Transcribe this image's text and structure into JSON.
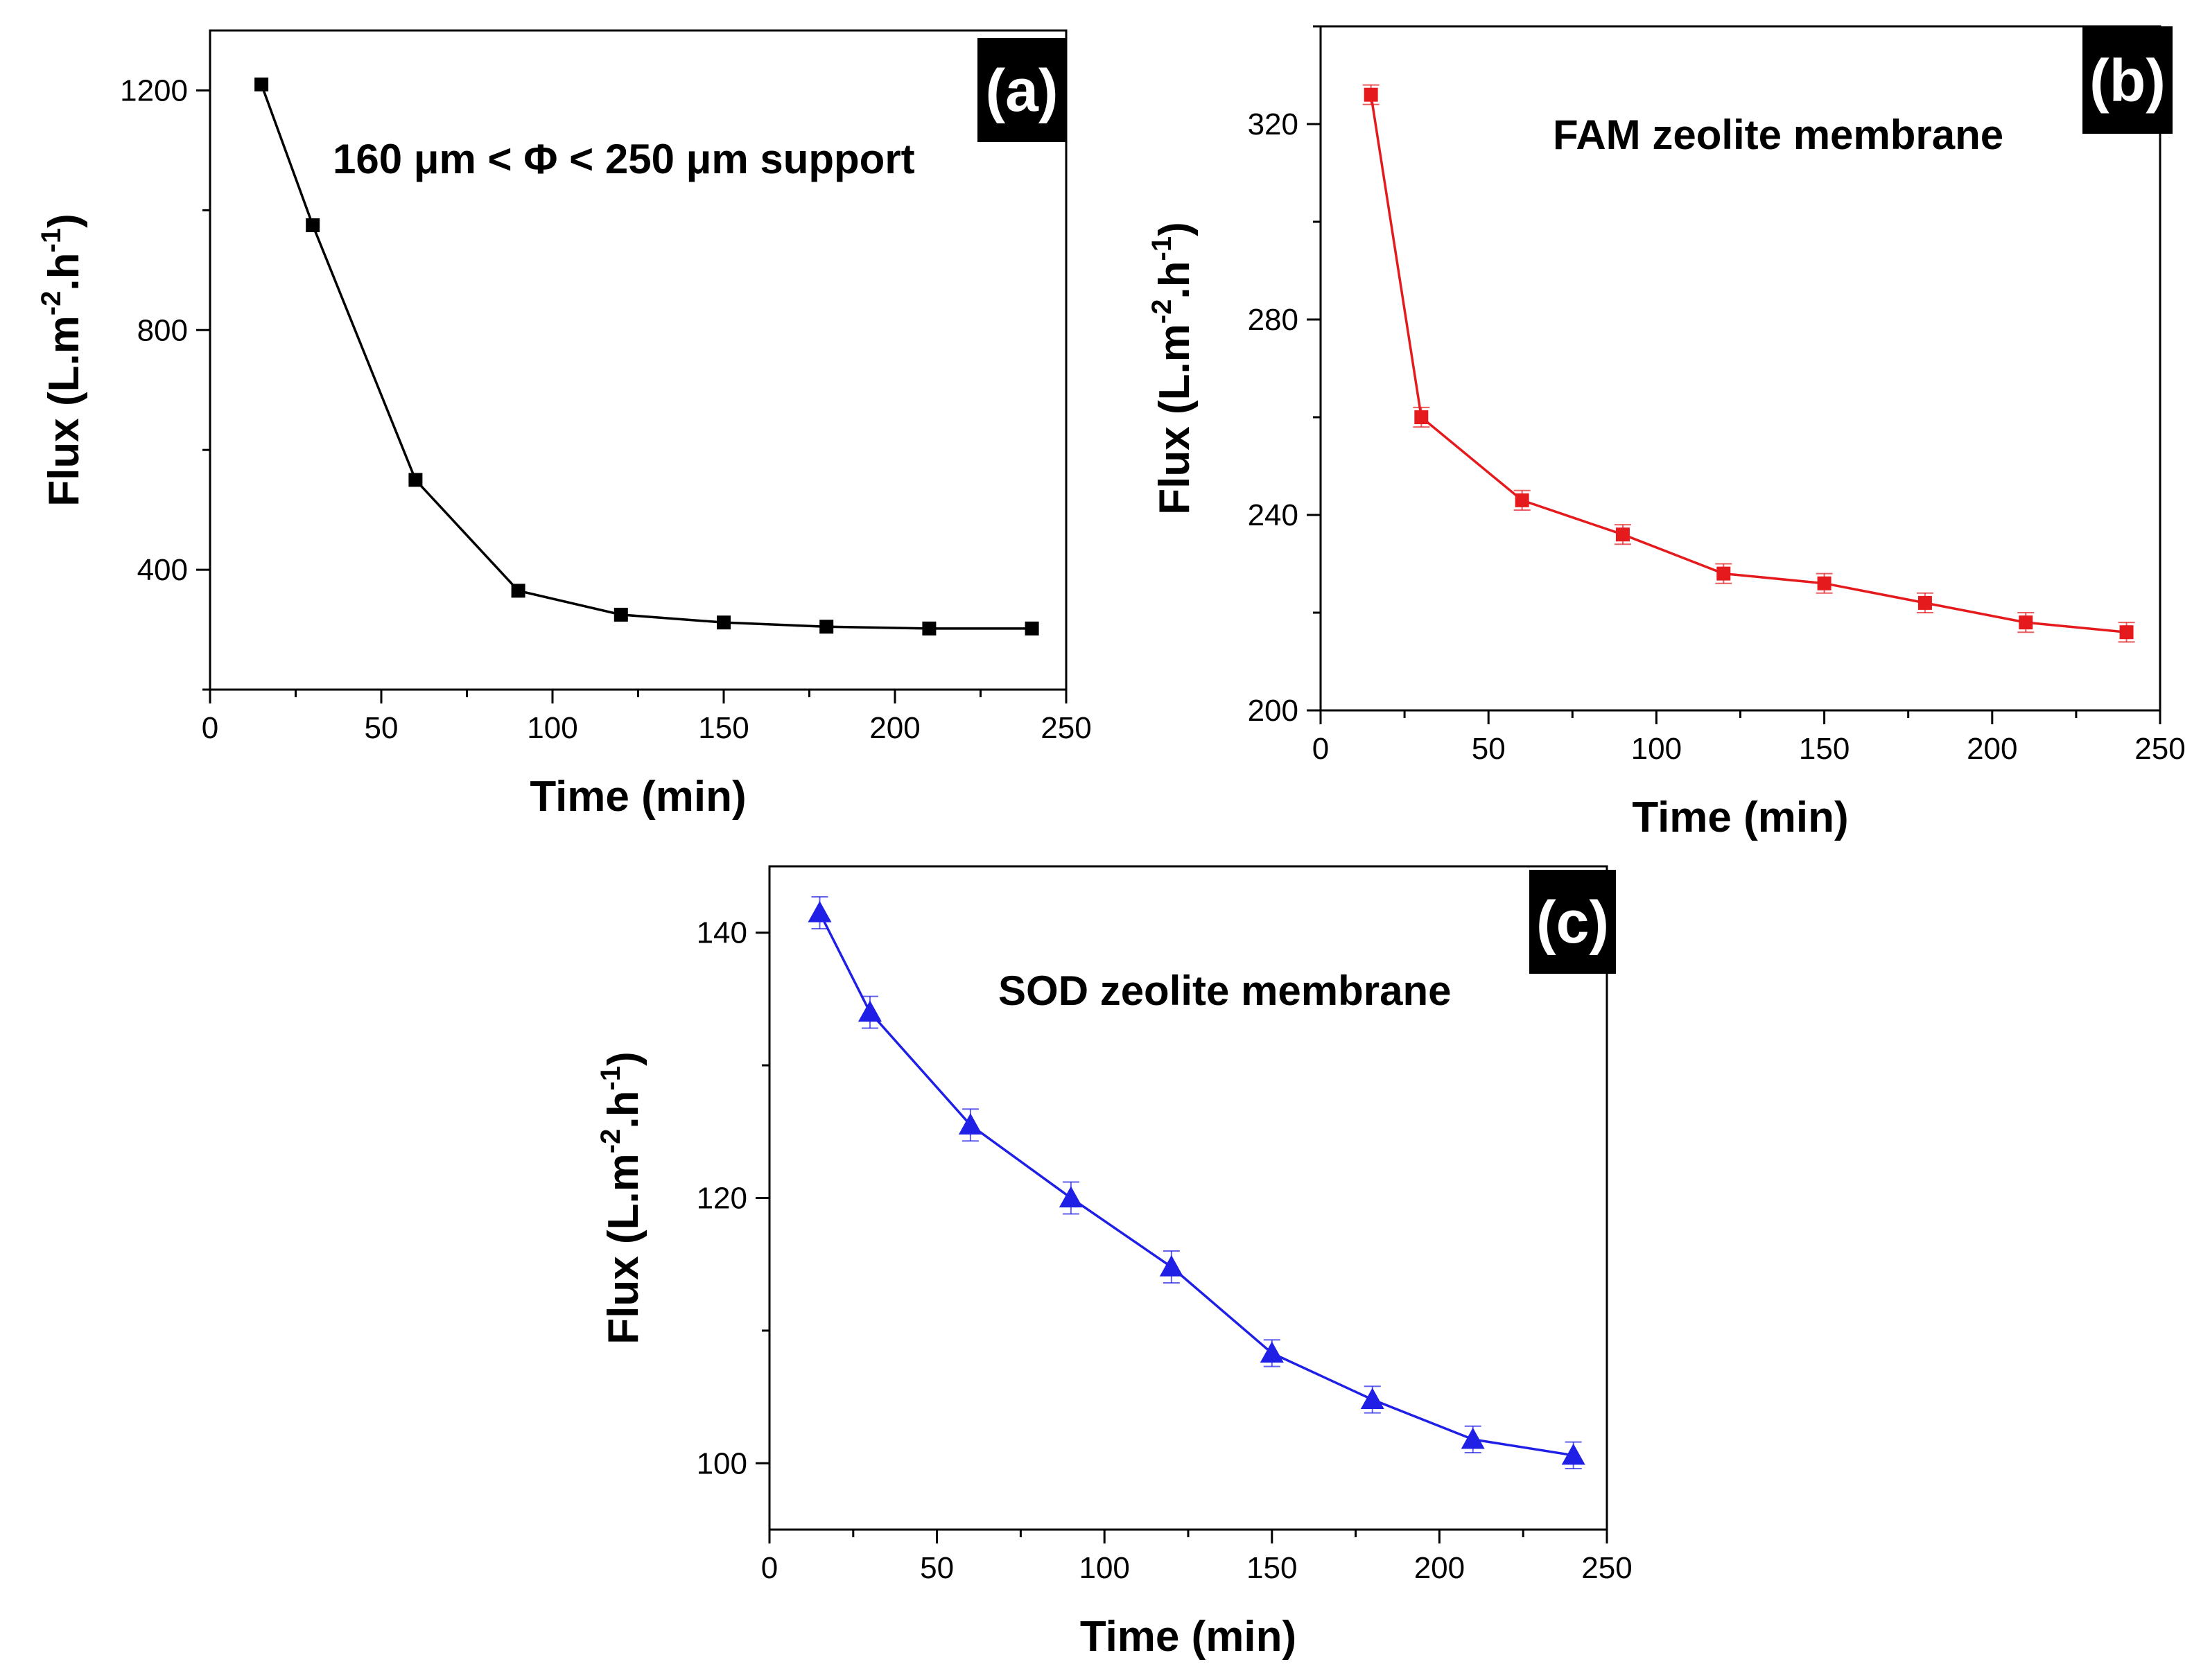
{
  "chart_data": [
    {
      "type": "line",
      "panel_label": "(a)",
      "annotation": "160 μm < Φ < 250 μm support",
      "xlabel": "Time (min)",
      "ylabel": {
        "main": "Flux (L.m",
        "sup1": "-2",
        "mid": ".h",
        "sup2": "-1",
        "end": ")"
      },
      "xlim": [
        0,
        250
      ],
      "ylim": [
        200,
        1300
      ],
      "xticks": [
        0,
        50,
        100,
        150,
        200,
        250
      ],
      "yticks": [
        400,
        800,
        1200
      ],
      "series": [
        {
          "name": "160-250 μm support",
          "color": "#000000",
          "marker": "square",
          "x": [
            15,
            30,
            60,
            90,
            120,
            150,
            180,
            210,
            240
          ],
          "y": [
            1210,
            975,
            550,
            365,
            325,
            312,
            305,
            302,
            302
          ]
        }
      ]
    },
    {
      "type": "line",
      "panel_label": "(b)",
      "annotation": "FAM zeolite membrane",
      "xlabel": "Time (min)",
      "ylabel": {
        "main": "Flux (L.m",
        "sup1": "-2",
        "mid": ".h",
        "sup2": "-1",
        "end": ")"
      },
      "xlim": [
        0,
        250
      ],
      "ylim": [
        200,
        340
      ],
      "xticks": [
        0,
        50,
        100,
        150,
        200,
        250
      ],
      "yticks": [
        200,
        240,
        280,
        320
      ],
      "series": [
        {
          "name": "FAM zeolite membrane",
          "color": "#e41a1c",
          "marker": "square",
          "x": [
            15,
            30,
            60,
            90,
            120,
            150,
            180,
            210,
            240
          ],
          "y": [
            326,
            260,
            243,
            236,
            228,
            226,
            222,
            218,
            216
          ],
          "err": [
            2,
            2,
            2,
            2,
            2,
            2,
            2,
            2,
            2
          ]
        }
      ]
    },
    {
      "type": "line",
      "panel_label": "(c)",
      "annotation": "SOD zeolite membrane",
      "xlabel": "Time (min)",
      "ylabel": {
        "main": "Flux (L.m",
        "sup1": "-2",
        "mid": ".h",
        "sup2": "-1",
        "end": ")"
      },
      "xlim": [
        0,
        250
      ],
      "ylim": [
        95,
        145
      ],
      "xticks": [
        0,
        50,
        100,
        150,
        200,
        250
      ],
      "yticks": [
        100,
        120,
        140
      ],
      "series": [
        {
          "name": "SOD zeolite membrane",
          "color": "#1f1fe6",
          "marker": "triangle",
          "x": [
            15,
            30,
            60,
            90,
            120,
            150,
            180,
            210,
            240
          ],
          "y": [
            141.5,
            134,
            125.5,
            120,
            114.8,
            108.3,
            104.8,
            101.8,
            100.6
          ],
          "err": [
            1.2,
            1.2,
            1.2,
            1.2,
            1.2,
            1.0,
            1.0,
            1.0,
            1.0
          ]
        }
      ]
    }
  ]
}
